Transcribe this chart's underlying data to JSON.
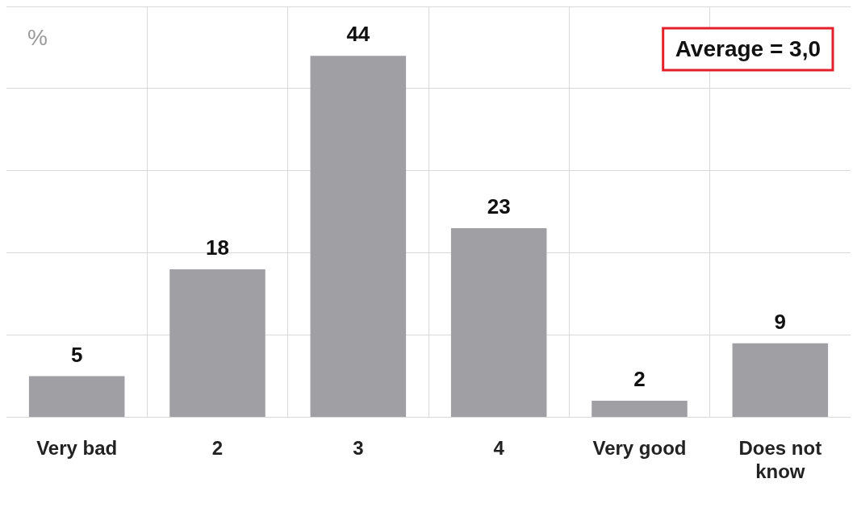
{
  "chart_data": {
    "type": "bar",
    "ylabel": "%",
    "categories": [
      "Very bad",
      "2",
      "3",
      "4",
      "Very good",
      "Does not know"
    ],
    "values": [
      5,
      18,
      44,
      23,
      2,
      9
    ],
    "color": "#a09fa4",
    "tick_labels": "x",
    "grid": true,
    "data_labels": true,
    "legend": false,
    "annotations": [
      "Average = 3,0"
    ]
  }
}
